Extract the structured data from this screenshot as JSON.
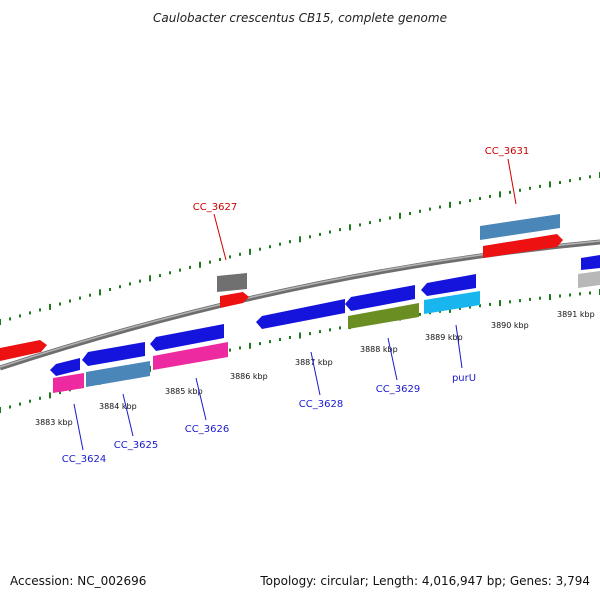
{
  "title": "Caulobacter crescentus CB15, complete genome",
  "footer": {
    "accession": "Accession: NC_002696",
    "summary": "Topology: circular; Length: 4,016,947 bp; Genes: 3,794"
  },
  "colors": {
    "backbone": "#8c8c8c",
    "tick": "#1f7a1f",
    "gene_blue": "#1414dd",
    "gene_red": "#ee1111",
    "gene_pink": "#ee2aa0",
    "gene_steel": "#4a86b8",
    "gene_olive": "#6b8e23",
    "gene_cyan": "#19b5ee",
    "gene_gray": "#707070",
    "gene_silver": "#b8b8b8",
    "label_red": "#cc0000",
    "label_blue": "#1a1acc"
  },
  "kbp_labels": [
    "3883 kbp",
    "3884 kbp",
    "3885 kbp",
    "3886 kbp",
    "3887 kbp",
    "3888 kbp",
    "3889 kbp",
    "3890 kbp",
    "3891 kbp"
  ],
  "gene_labels": [
    {
      "text": "CC_3627",
      "strand": "forward"
    },
    {
      "text": "CC_3631",
      "strand": "forward"
    },
    {
      "text": "CC_3624",
      "strand": "reverse"
    },
    {
      "text": "CC_3625",
      "strand": "reverse"
    },
    {
      "text": "CC_3626",
      "strand": "reverse"
    },
    {
      "text": "CC_3628",
      "strand": "reverse"
    },
    {
      "text": "CC_3629",
      "strand": "reverse"
    },
    {
      "text": "purU",
      "strand": "reverse"
    }
  ]
}
